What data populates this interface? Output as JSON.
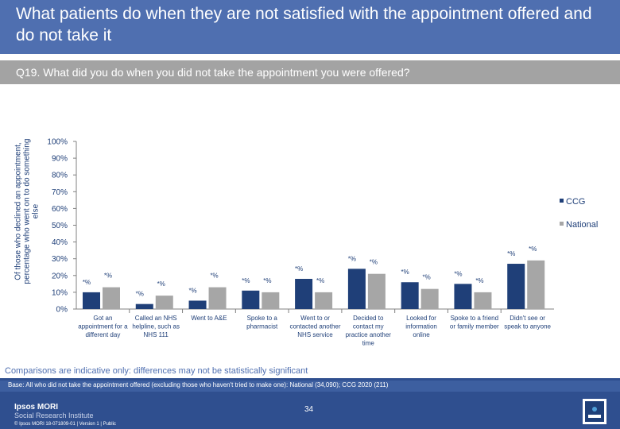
{
  "header": {
    "title": "What patients do when they are not satisfied with the appointment offered and do not take it"
  },
  "question": "Q19. What did you do when you did not take the appointment you were offered?",
  "chart_data": {
    "type": "bar",
    "ylabel": "Of those who declined an appointment, percentage who went on to do something else",
    "ylim": [
      0,
      100
    ],
    "yticks": [
      "0%",
      "10%",
      "20%",
      "30%",
      "40%",
      "50%",
      "60%",
      "70%",
      "80%",
      "90%",
      "100%"
    ],
    "categories": [
      "Got an appointment for a different day",
      "Called an NHS helpline, such as NHS 111",
      "Went to A&E",
      "Spoke to a pharmacist",
      "Went to or contacted another NHS service",
      "Decided to contact my practice another time",
      "Looked for information online",
      "Spoke to a friend or family member",
      "Didn't see or speak to anyone"
    ],
    "series": [
      {
        "name": "CCG",
        "color": "#1f3f78",
        "values": [
          10,
          3,
          5,
          11,
          18,
          24,
          16,
          15,
          27
        ],
        "labels": [
          "*%",
          "*%",
          "*%",
          "*%",
          "*%",
          "*%",
          "*%",
          "*%",
          "*%"
        ]
      },
      {
        "name": "National",
        "color": "#a6a6a6",
        "values": [
          13,
          8,
          13,
          10,
          10,
          21,
          12,
          10,
          29
        ],
        "labels": [
          "*%",
          "*%",
          "*%",
          "*%",
          "*%",
          "*%",
          "*%",
          "*%",
          "*%"
        ]
      }
    ],
    "legend": {
      "position": "right",
      "entries": [
        "CCG",
        "National"
      ]
    },
    "grid": false
  },
  "disclaimer": "Comparisons are indicative only: differences may not be statistically significant",
  "footer": {
    "base": "Base: All who did not take the appointment offered (excluding those who haven't tried to make one): National (34,090); CCG 2020 (211)",
    "page_number": "34",
    "org_name": "Ipsos MORI",
    "org_sub": "Social Research Institute",
    "copyright": "© Ipsos MORI     18-071809-01 | Version 1 | Public"
  }
}
